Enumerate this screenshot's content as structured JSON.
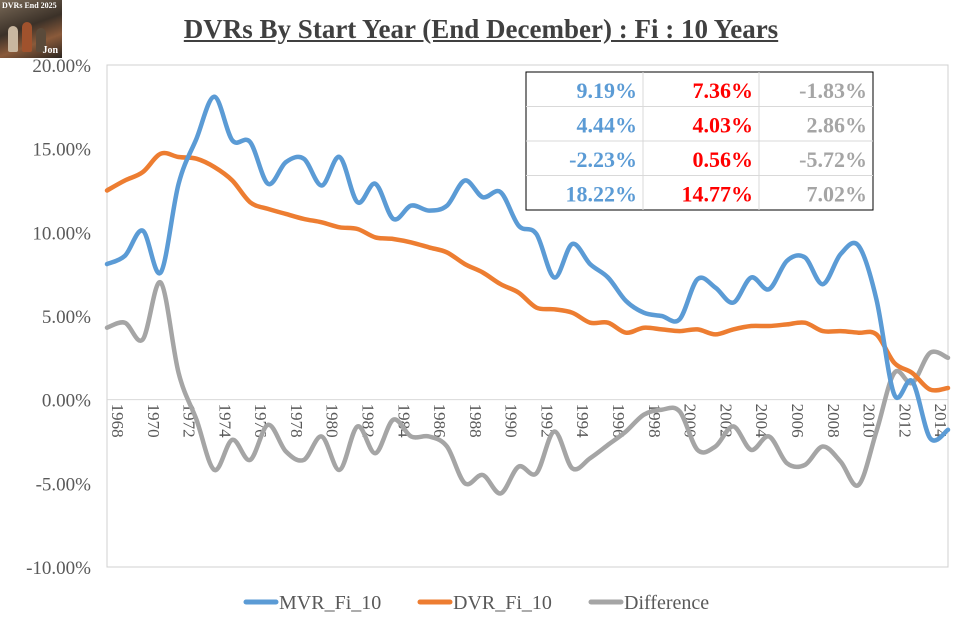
{
  "title": "DVRs By Start Year (End December) : Fi : 10 Years",
  "logo": {
    "text_top": "DVRs End 2025",
    "text_bottom": "Jon"
  },
  "chart_data": {
    "type": "line",
    "title": "DVRs By Start Year (End December) : Fi : 10 Years",
    "xlabel": "",
    "ylabel": "",
    "x": [
      1968,
      1969,
      1970,
      1971,
      1972,
      1973,
      1974,
      1975,
      1976,
      1977,
      1978,
      1979,
      1980,
      1981,
      1982,
      1983,
      1984,
      1985,
      1986,
      1987,
      1988,
      1989,
      1990,
      1991,
      1992,
      1993,
      1994,
      1995,
      1996,
      1997,
      1998,
      1999,
      2000,
      2001,
      2002,
      2003,
      2004,
      2005,
      2006,
      2007,
      2008,
      2009,
      2010,
      2011,
      2012,
      2013,
      2014,
      2015
    ],
    "series": [
      {
        "name": "MVR_Fi_10",
        "color": "#5b9bd5",
        "values": [
          8.1,
          8.6,
          10.1,
          7.6,
          12.9,
          15.6,
          18.1,
          15.5,
          15.4,
          12.9,
          14.2,
          14.4,
          12.8,
          14.5,
          11.8,
          12.9,
          10.8,
          11.6,
          11.3,
          11.6,
          13.1,
          12.1,
          12.4,
          10.4,
          9.9,
          7.3,
          9.3,
          8.1,
          7.3,
          5.9,
          5.2,
          5.0,
          4.8,
          7.2,
          6.7,
          5.8,
          7.3,
          6.6,
          8.3,
          8.5,
          6.9,
          8.7,
          9.2,
          6.0,
          0.3,
          1.1,
          -2.3,
          -1.8
        ]
      },
      {
        "name": "DVR_Fi_10",
        "color": "#ed7d31",
        "values": [
          12.5,
          13.1,
          13.6,
          14.7,
          14.5,
          14.4,
          13.9,
          13.1,
          11.8,
          11.4,
          11.1,
          10.8,
          10.6,
          10.3,
          10.2,
          9.7,
          9.6,
          9.4,
          9.1,
          8.8,
          8.1,
          7.6,
          6.9,
          6.4,
          5.5,
          5.4,
          5.2,
          4.6,
          4.6,
          4.0,
          4.3,
          4.2,
          4.1,
          4.2,
          3.9,
          4.2,
          4.4,
          4.4,
          4.5,
          4.6,
          4.1,
          4.1,
          4.0,
          3.9,
          2.2,
          1.6,
          0.6,
          0.7
        ]
      },
      {
        "name": "Difference",
        "color": "#a5a5a5",
        "values": [
          4.3,
          4.6,
          3.6,
          7.0,
          1.6,
          -1.2,
          -4.2,
          -2.4,
          -3.6,
          -1.5,
          -3.1,
          -3.6,
          -2.2,
          -4.2,
          -1.6,
          -3.2,
          -1.2,
          -2.2,
          -2.2,
          -2.8,
          -5.0,
          -4.5,
          -5.6,
          -4.0,
          -4.4,
          -1.9,
          -4.1,
          -3.5,
          -2.7,
          -1.9,
          -0.9,
          -0.6,
          -0.7,
          -3.0,
          -2.8,
          -1.6,
          -3.0,
          -2.2,
          -3.8,
          -3.9,
          -2.8,
          -3.7,
          -5.1,
          -1.9,
          1.6,
          1.0,
          2.8,
          2.5
        ]
      }
    ],
    "ylim": [
      -10,
      20
    ],
    "y_ticks": [
      "20.00%",
      "15.00%",
      "10.00%",
      "5.00%",
      "0.00%",
      "-5.00%",
      "-10.00%"
    ],
    "x_ticks": [
      "1968",
      "1970",
      "1972",
      "1974",
      "1976",
      "1978",
      "1980",
      "1982",
      "1984",
      "1986",
      "1988",
      "1990",
      "1992",
      "1994",
      "1996",
      "1998",
      "2000",
      "2002",
      "2004",
      "2006",
      "2008",
      "2010",
      "2012",
      "2014"
    ],
    "grid": false,
    "legend_position": "bottom",
    "legend": [
      "MVR_Fi_10",
      "DVR_Fi_10",
      "Difference"
    ],
    "stats_table": {
      "position": "top-right",
      "rows": [
        [
          {
            "text": "9.19%",
            "color": "#5b9bd5"
          },
          {
            "text": "7.36%",
            "color": "#ff0000"
          },
          {
            "text": "-1.83%",
            "color": "#a5a5a5"
          }
        ],
        [
          {
            "text": "4.44%",
            "color": "#5b9bd5"
          },
          {
            "text": "4.03%",
            "color": "#ff0000"
          },
          {
            "text": "2.86%",
            "color": "#a5a5a5"
          }
        ],
        [
          {
            "text": "-2.23%",
            "color": "#5b9bd5"
          },
          {
            "text": "0.56%",
            "color": "#ff0000"
          },
          {
            "text": "-5.72%",
            "color": "#a5a5a5"
          }
        ],
        [
          {
            "text": "18.22%",
            "color": "#5b9bd5"
          },
          {
            "text": "14.77%",
            "color": "#ff0000"
          },
          {
            "text": "7.02%",
            "color": "#a5a5a5"
          }
        ]
      ]
    }
  }
}
